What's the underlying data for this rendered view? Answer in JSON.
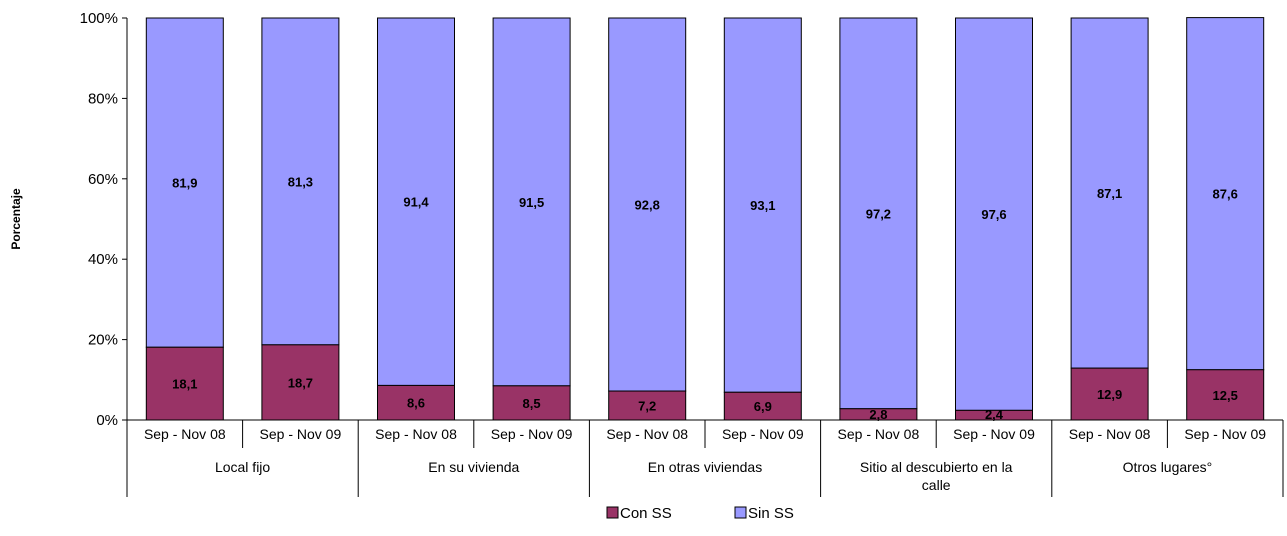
{
  "chart_data": {
    "type": "bar",
    "stacked": true,
    "percent_stacked": true,
    "ylabel": "Porcentaje",
    "xlabel": "",
    "title": "",
    "ylim": [
      0,
      100
    ],
    "yticks": [
      "0%",
      "20%",
      "40%",
      "60%",
      "80%",
      "100%"
    ],
    "groups": [
      {
        "label_lines": [
          "Local fijo"
        ],
        "periods": [
          "Sep - Nov 08",
          "Sep - Nov 09"
        ]
      },
      {
        "label_lines": [
          "En su vivienda"
        ],
        "periods": [
          "Sep - Nov 08",
          "Sep - Nov 09"
        ]
      },
      {
        "label_lines": [
          "En otras viviendas"
        ],
        "periods": [
          "Sep - Nov 08",
          "Sep - Nov 09"
        ]
      },
      {
        "label_lines": [
          "Sitio al descubierto en la",
          "calle"
        ],
        "periods": [
          "Sep - Nov 08",
          "Sep - Nov 09"
        ]
      },
      {
        "label_lines": [
          "Otros lugares°"
        ],
        "periods": [
          "Sep - Nov 08",
          "Sep - Nov 09"
        ]
      }
    ],
    "series": [
      {
        "name": "Con SS",
        "color": "#993366",
        "values": [
          18.1,
          18.7,
          8.6,
          8.5,
          7.2,
          6.9,
          2.8,
          2.4,
          12.9,
          12.5
        ],
        "labels": [
          "18,1",
          "18,7",
          "8,6",
          "8,5",
          "7,2",
          "6,9",
          "2,8",
          "2,4",
          "12,9",
          "12,5"
        ]
      },
      {
        "name": "Sin SS",
        "color": "#9999FF",
        "values": [
          81.9,
          81.3,
          91.4,
          91.5,
          92.8,
          93.1,
          97.2,
          97.6,
          87.1,
          87.6
        ],
        "labels": [
          "81,9",
          "81,3",
          "91,4",
          "91,5",
          "92,8",
          "93,1",
          "97,2",
          "97,6",
          "87,1",
          "87,6"
        ]
      }
    ],
    "legend_position": "bottom",
    "grid": false
  }
}
